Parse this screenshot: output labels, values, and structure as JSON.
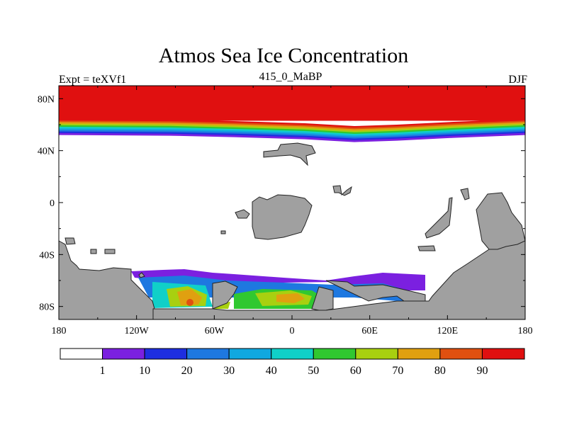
{
  "chart_data": {
    "type": "heatmap",
    "title": "Atmos Sea Ice Concentration",
    "left_label": "Expt = teXVf1",
    "center_label": "415_0_MaBP",
    "right_label": "DJF",
    "x_ticks": [
      "180",
      "120W",
      "60W",
      "0",
      "60E",
      "120E",
      "180"
    ],
    "y_ticks": [
      "80N",
      "40N",
      "0",
      "40S",
      "80S"
    ],
    "xlim": [
      -180,
      180
    ],
    "ylim": [
      -90,
      90
    ],
    "colorbar": {
      "levels": [
        1,
        10,
        20,
        30,
        40,
        50,
        60,
        70,
        80,
        90
      ],
      "colors": [
        "#ffffff",
        "#7b20e0",
        "#1e2ee0",
        "#1e78e0",
        "#10a8e0",
        "#10d0c8",
        "#30c830",
        "#a8d010",
        "#e0a010",
        "#e05010",
        "#e01010"
      ]
    },
    "fields": {
      "northern_ice": {
        "edge_lat": 50,
        "full_ice_lat": 63,
        "concentration_north": 100
      },
      "southern_ice_max_concentration": 90
    },
    "land_color": "#a0a0a0"
  }
}
